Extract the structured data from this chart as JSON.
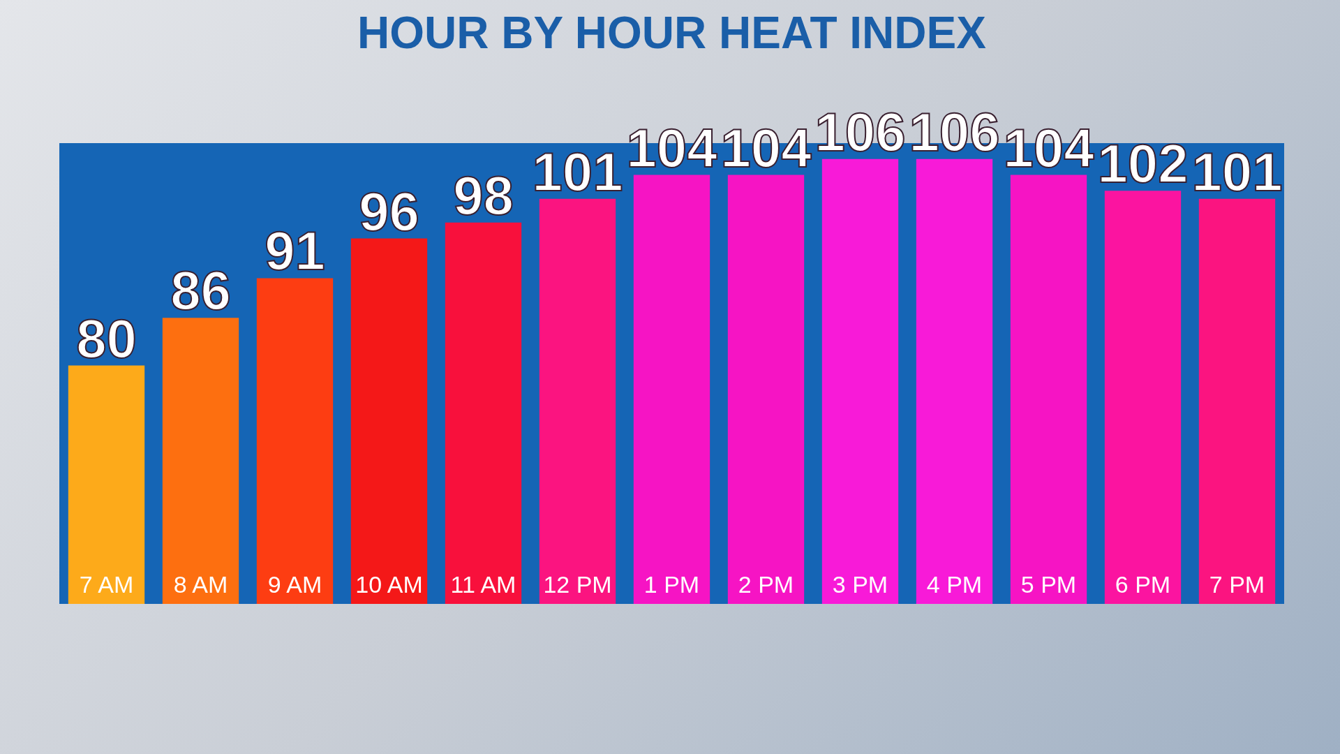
{
  "chart_data": {
    "type": "bar",
    "title": "HOUR BY HOUR HEAT INDEX",
    "categories": [
      "7 AM",
      "8 AM",
      "9 AM",
      "10 AM",
      "11 AM",
      "12 PM",
      "1 PM",
      "2 PM",
      "3 PM",
      "4 PM",
      "5 PM",
      "6 PM",
      "7 PM"
    ],
    "values": [
      80,
      86,
      91,
      96,
      98,
      101,
      104,
      104,
      106,
      106,
      104,
      102,
      101
    ],
    "colors": [
      "#fdaa1a",
      "#fd6f10",
      "#fd3d12",
      "#f41818",
      "#f8103c",
      "#fb1480",
      "#f614c4",
      "#f614c4",
      "#f81ad8",
      "#f81ad8",
      "#f614c4",
      "#fb14a0",
      "#fb1480"
    ],
    "ylim": [
      50,
      108
    ],
    "data_labels": true,
    "tick_labels": "x",
    "grid": false,
    "legend": false
  }
}
